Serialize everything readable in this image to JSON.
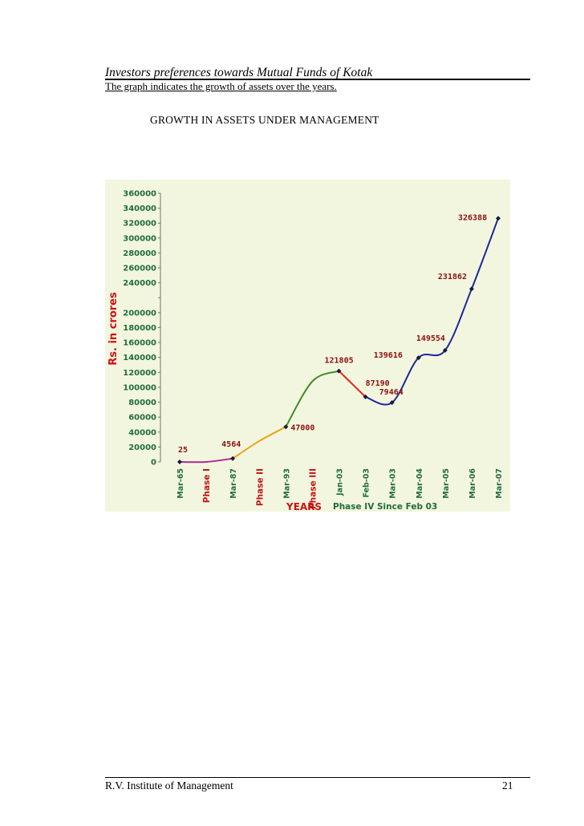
{
  "header": {
    "title": "Investors preferences towards Mutual Funds of Kotak",
    "subtitle": "The graph indicates the growth of assets over the years. "
  },
  "chart_heading": "GROWTH IN ASSETS UNDER MANAGEMENT",
  "footer": {
    "institute": "R.V. Institute of Management",
    "page_number": "21"
  },
  "colors": {
    "panel_bg": "#f3f6df",
    "tick_text": "#1f6d3a",
    "ylabel": "#cc1111",
    "xlabel": "#cc1111",
    "value_label": "#8b1010",
    "phase_label": "#c01515",
    "phase4_label": "#1f6d3a",
    "seg_phase1": "#aa2a8e",
    "seg_phase2": "#e8a317",
    "seg_phase3": "#3f8d2a",
    "seg_decline": "#e02a1a",
    "seg_phase4": "#1a2a9a"
  },
  "chart_data": {
    "type": "line",
    "ylabel": "Rs. in crores",
    "xlabel": "YEARS",
    "ylim": [
      0,
      360000
    ],
    "yticks": [
      0,
      20000,
      40000,
      60000,
      80000,
      100000,
      120000,
      140000,
      160000,
      180000,
      200000,
      220000,
      240000,
      260000,
      280000,
      300000,
      320000,
      340000,
      360000
    ],
    "ytick_labels": [
      "0",
      "20000",
      "40000",
      "60000",
      "80000",
      "100000",
      "120000",
      "140000",
      "160000",
      "180000",
      "200000",
      "",
      "240000",
      "260000",
      "280000",
      "300000",
      "320000",
      "340000",
      "360000"
    ],
    "grid": false,
    "categories": [
      "Mar-65",
      "Phase I",
      "Mar-87",
      "Phase II",
      "Mar-93",
      "Phase III",
      "Jan-03",
      "Feb-03",
      "Mar-03",
      "Mar-04",
      "Mar-05",
      "Mar-06",
      "Mar-07"
    ],
    "category_roles": [
      "date",
      "phase",
      "date",
      "phase",
      "date",
      "phase",
      "date",
      "date",
      "date",
      "date",
      "date",
      "date",
      "date"
    ],
    "points": [
      {
        "x": "Mar-65",
        "y": 25,
        "label": "25",
        "marker": true
      },
      {
        "x": "Mar-87",
        "y": 4564,
        "label": "4564",
        "marker": true
      },
      {
        "x": "Mar-93",
        "y": 47000,
        "label": "47000",
        "marker": true
      },
      {
        "x": "Jan-03",
        "y": 121805,
        "label": "121805",
        "marker": true
      },
      {
        "x": "Feb-03",
        "y": 87190,
        "label": "87190",
        "marker": true
      },
      {
        "x": "Mar-03",
        "y": 79464,
        "label": "79464",
        "marker": true
      },
      {
        "x": "Mar-04",
        "y": 139616,
        "label": "139616",
        "marker": true
      },
      {
        "x": "Mar-05",
        "y": 149554,
        "label": "149554",
        "marker": true
      },
      {
        "x": "Mar-06",
        "y": 231862,
        "label": "231862",
        "marker": true
      },
      {
        "x": "Mar-07",
        "y": 326388,
        "label": "326388",
        "marker": true
      }
    ],
    "segments": [
      {
        "name": "Phase I",
        "color": "#aa2a8e",
        "path": [
          [
            "Mar-65",
            25
          ],
          [
            "Phase I",
            0
          ],
          [
            "Mar-87",
            4564
          ]
        ]
      },
      {
        "name": "Phase II",
        "color": "#e8a317",
        "path": [
          [
            "Mar-87",
            4564
          ],
          [
            "Phase II",
            28000
          ],
          [
            "Mar-93",
            47000
          ]
        ]
      },
      {
        "name": "Phase III",
        "color": "#3f8d2a",
        "path": [
          [
            "Mar-93",
            47000
          ],
          [
            "Phase III",
            108000
          ],
          [
            "Jan-03",
            121805
          ]
        ]
      },
      {
        "name": "",
        "color": "#e02a1a",
        "path": [
          [
            "Jan-03",
            121805
          ],
          [
            "Feb-03",
            87190
          ]
        ]
      },
      {
        "name": "Phase IV Since Feb 03",
        "color": "#1a2a9a",
        "path": [
          [
            "Feb-03",
            87190
          ],
          [
            "Mar-03",
            79464
          ],
          [
            "Mar-04",
            139616
          ],
          [
            "Mar-05",
            149554
          ],
          [
            "Mar-06",
            231862
          ],
          [
            "Mar-07",
            326388
          ]
        ]
      }
    ],
    "annotations": [
      "Phase IV Since Feb 03"
    ]
  }
}
